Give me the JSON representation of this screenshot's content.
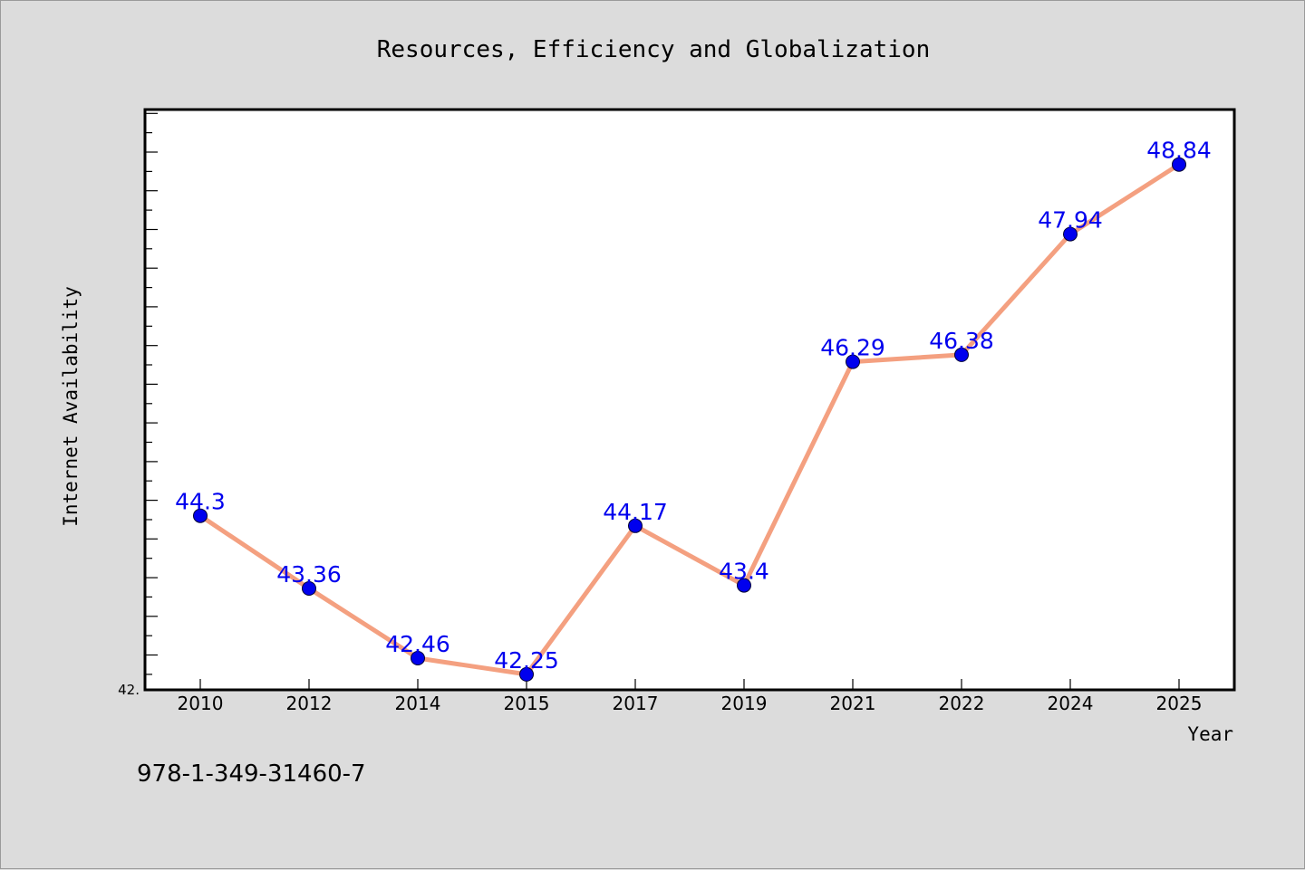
{
  "chart_data": {
    "type": "line",
    "title": "Resources, Efficiency and Globalization",
    "xlabel": "Year",
    "ylabel": "Internet Availability",
    "categories": [
      "2010",
      "2012",
      "2014",
      "2015",
      "2017",
      "2019",
      "2021",
      "2022",
      "2024",
      "2025"
    ],
    "series": [
      {
        "values": [
          44.3,
          43.36,
          42.46,
          42.25,
          44.17,
          43.4,
          46.29,
          46.38,
          47.94,
          48.84
        ],
        "labels": [
          "44.3",
          "43.36",
          "42.46",
          "42.25",
          "44.17",
          "43.4",
          "46.29",
          "46.38",
          "47.94",
          "48.84"
        ],
        "line_color": "#f4a080",
        "marker_color": "#0000ee"
      }
    ],
    "ylim": [
      42.05,
      49.55
    ],
    "y_min_tick_label": "42.",
    "grid": false,
    "legend": "none",
    "label_color": "#0000ee"
  },
  "footer": {
    "isbn": "978-1-349-31460-7"
  },
  "colors": {
    "background": "#dcdcdc",
    "plot_area": "#ffffff",
    "axis": "#000000"
  }
}
